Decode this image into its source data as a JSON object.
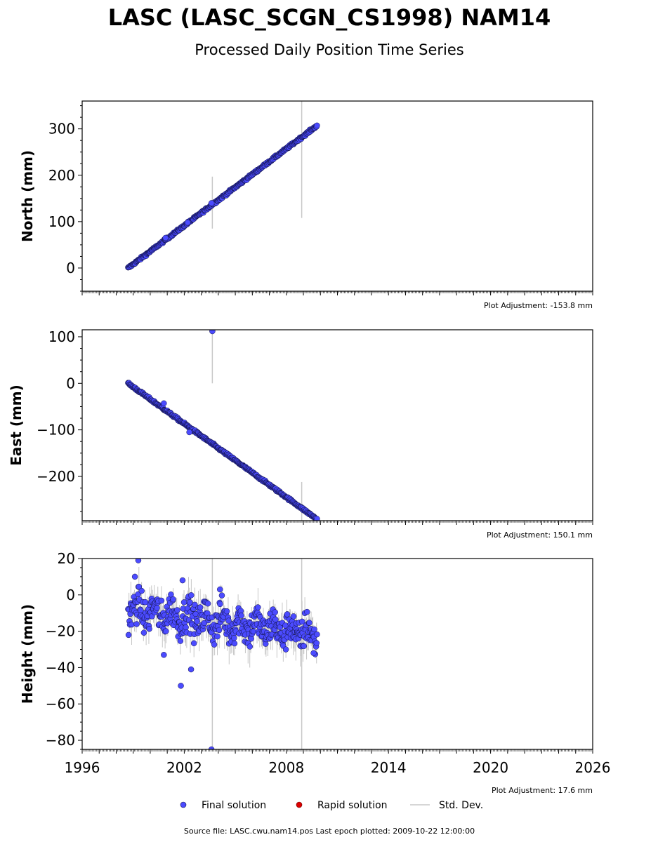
{
  "figure": {
    "title": "LASC (LASC_SCGN_CS1998) NAM14",
    "subtitle": "Processed Daily Position Time Series",
    "footer": "Source file: LASC.cwu.nam14.pos  Last epoch plotted: 2009-10-22 12:00:00"
  },
  "legend": {
    "placement": "bottom-center",
    "items": [
      {
        "label": "Final solution",
        "color": "#4b4bff",
        "marker": "circle"
      },
      {
        "label": "Rapid solution",
        "color": "#dd0000",
        "marker": "circle"
      },
      {
        "label": "Std. Dev.",
        "color": "#c8c8c8",
        "marker": "line"
      }
    ]
  },
  "colors": {
    "final": "#4b4bff",
    "rapid": "#dd0000",
    "errorbar": "#c8c8c8",
    "edge": "#111144"
  },
  "chart_data": [
    {
      "type": "scatter",
      "ylabel": "North (mm)",
      "adjustment": "Plot Adjustment: -153.8 mm",
      "xlim": [
        1996,
        2026
      ],
      "ylim": [
        -50,
        360
      ],
      "yticks": [
        0,
        100,
        200,
        300
      ],
      "ytick_labels": [
        "0",
        "100",
        "200",
        "300"
      ],
      "grid": false,
      "trend": {
        "x": [
          1998.7,
          2009.8
        ],
        "y": [
          0,
          307
        ]
      },
      "outliers": [
        {
          "x": 2000.9,
          "y": 65
        },
        {
          "x": 2002.2,
          "y": 98
        },
        {
          "x": 2003.6,
          "y": 140
        }
      ],
      "errorbars": [
        {
          "x": 2003.65,
          "y0": 85,
          "y1": 197
        },
        {
          "x": 2008.9,
          "y0": 108,
          "y1": 360
        }
      ]
    },
    {
      "type": "scatter",
      "ylabel": "East (mm)",
      "adjustment": "Plot Adjustment: 150.1 mm",
      "xlim": [
        1996,
        2026
      ],
      "ylim": [
        -295,
        115
      ],
      "yticks": [
        -200,
        -100,
        0,
        100
      ],
      "ytick_labels": [
        "−200",
        "−100",
        "0",
        "100"
      ],
      "grid": false,
      "trend": {
        "x": [
          1998.7,
          2009.8
        ],
        "y": [
          0,
          -292
        ]
      },
      "outliers": [
        {
          "x": 2003.65,
          "y": 112
        },
        {
          "x": 2000.8,
          "y": -43
        },
        {
          "x": 2002.3,
          "y": -105
        }
      ],
      "errorbars": [
        {
          "x": 2003.65,
          "y0": 0,
          "y1": 112
        },
        {
          "x": 2008.9,
          "y0": -295,
          "y1": -212
        }
      ]
    },
    {
      "type": "scatter",
      "ylabel": "Height (mm)",
      "adjustment": "Plot Adjustment: 17.6 mm",
      "xlim": [
        1996,
        2026
      ],
      "ylim": [
        -85,
        20
      ],
      "yticks": [
        -80,
        -60,
        -40,
        -20,
        0,
        20
      ],
      "ytick_labels": [
        "−80",
        "−60",
        "−40",
        "−20",
        "0",
        "20"
      ],
      "xticks": [
        1996,
        2002,
        2008,
        2014,
        2020,
        2026
      ],
      "xtick_labels": [
        "1996",
        "2002",
        "2008",
        "2014",
        "2020",
        "2026"
      ],
      "grid": false,
      "trend": {
        "x": [
          1998.7,
          2009.8
        ],
        "y": [
          -8,
          -22
        ]
      },
      "scatter_spread_mm": 8,
      "outliers": [
        {
          "x": 1999.3,
          "y": 19
        },
        {
          "x": 1999.1,
          "y": 10
        },
        {
          "x": 2000.8,
          "y": -33
        },
        {
          "x": 2001.8,
          "y": -50
        },
        {
          "x": 2002.4,
          "y": -41
        },
        {
          "x": 2001.9,
          "y": 8
        },
        {
          "x": 2003.6,
          "y": -85
        },
        {
          "x": 2004.1,
          "y": 3
        },
        {
          "x": 2009.6,
          "y": -32
        }
      ],
      "errorbars": [
        {
          "x": 2003.65,
          "y0": -85,
          "y1": 20
        },
        {
          "x": 2008.9,
          "y0": -85,
          "y1": 20
        }
      ]
    }
  ]
}
